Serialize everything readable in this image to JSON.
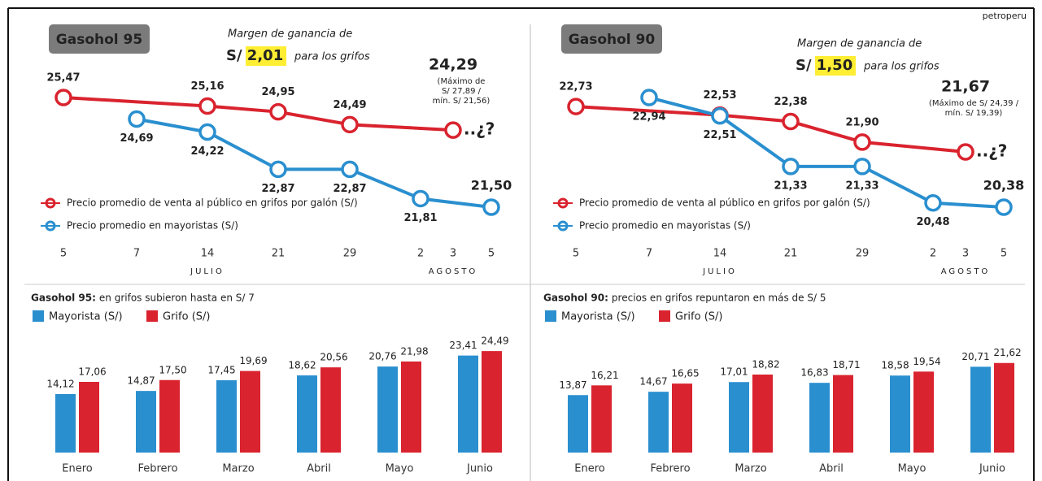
{
  "source": "petroperu",
  "chart_data": [
    {
      "type": "line",
      "title": "Gasohol 95",
      "margin_text": "Margen de ganancia de",
      "margin_value": "S/ 2,01",
      "margin_suffix": "para los grifos",
      "note": [
        "(Máximo de",
        "S/ 27,89 /",
        "mín. S/ 21,56)"
      ],
      "question": "..¿?",
      "categories": [
        "5",
        "7",
        "14",
        "21",
        "29",
        "2",
        "3",
        "5"
      ],
      "month_labels": [
        "JULIO",
        "AGOSTO"
      ],
      "series": [
        {
          "name": "Precio promedio de venta al público en grifos por galón (S/)",
          "color": "#d9232e",
          "values": [
            25.47,
            null,
            25.16,
            24.95,
            24.49,
            null,
            24.29,
            null
          ],
          "value_labels": [
            "25,47",
            null,
            "25,16",
            "24,95",
            "24,49",
            null,
            "24,29",
            null
          ]
        },
        {
          "name": "Precio promedio en mayoristas (S/)",
          "color": "#2a8fcf",
          "values": [
            null,
            24.69,
            24.22,
            22.87,
            22.87,
            21.81,
            null,
            21.5
          ],
          "value_labels": [
            null,
            "24,69",
            "24,22",
            "22,87",
            "22,87",
            "21,81",
            null,
            "21,50"
          ]
        }
      ]
    },
    {
      "type": "line",
      "title": "Gasohol 90",
      "margin_text": "Margen de ganancia de",
      "margin_value": "S/ 1,50",
      "margin_suffix": "para los grifos",
      "note": [
        "(Máximo de S/ 24,39 /",
        "mín. S/ 19,39)"
      ],
      "question": "..¿?",
      "categories": [
        "5",
        "7",
        "14",
        "21",
        "29",
        "2",
        "3",
        "5"
      ],
      "month_labels": [
        "JULIO",
        "AGOSTO"
      ],
      "series": [
        {
          "name": "Precio promedio de venta al público en grifos por galón (S/)",
          "color": "#d9232e",
          "values": [
            22.73,
            null,
            22.53,
            22.38,
            21.9,
            null,
            21.67,
            null
          ],
          "value_labels": [
            "22,73",
            null,
            "22,53",
            "22,38",
            "21,90",
            null,
            "21,67",
            null
          ]
        },
        {
          "name": "Precio promedio en mayoristas (S/)",
          "color": "#2a8fcf",
          "values": [
            null,
            22.94,
            22.51,
            21.33,
            21.33,
            20.48,
            null,
            20.38
          ],
          "value_labels": [
            null,
            "22,94",
            "22,51",
            "21,33",
            "21,33",
            "20,48",
            null,
            "20,38"
          ]
        }
      ]
    },
    {
      "type": "bar",
      "title": "Gasohol 95:",
      "subtitle": "en grifos subieron hasta en S/ 7",
      "categories": [
        "Enero",
        "Febrero",
        "Marzo",
        "Abril",
        "Mayo",
        "Junio"
      ],
      "series": [
        {
          "name": "Mayorista (S/)",
          "color": "#2a8fcf",
          "values": [
            14.12,
            14.87,
            17.45,
            18.62,
            20.76,
            23.41
          ],
          "value_labels": [
            "14,12",
            "14,87",
            "17,45",
            "18,62",
            "20,76",
            "23,41"
          ]
        },
        {
          "name": "Grifo (S/)",
          "color": "#d9232e",
          "values": [
            17.06,
            17.5,
            19.69,
            20.56,
            21.98,
            24.49
          ],
          "value_labels": [
            "17,06",
            "17,50",
            "19,69",
            "20,56",
            "21,98",
            "24,49"
          ]
        }
      ]
    },
    {
      "type": "bar",
      "title": "Gasohol 90:",
      "subtitle": "precios en grifos repuntaron en más de S/ 5",
      "categories": [
        "Enero",
        "Febrero",
        "Marzo",
        "Abril",
        "Mayo",
        "Junio"
      ],
      "series": [
        {
          "name": "Mayorista (S/)",
          "color": "#2a8fcf",
          "values": [
            13.87,
            14.67,
            17.01,
            16.83,
            18.58,
            20.71
          ],
          "value_labels": [
            "13,87",
            "14,67",
            "17,01",
            "16,83",
            "18,58",
            "20,71"
          ]
        },
        {
          "name": "Grifo (S/)",
          "color": "#d9232e",
          "values": [
            16.21,
            16.65,
            18.82,
            18.71,
            19.54,
            21.62
          ],
          "value_labels": [
            "16,21",
            "16,65",
            "18,82",
            "18,71",
            "19,54",
            "21,62"
          ]
        }
      ]
    }
  ]
}
